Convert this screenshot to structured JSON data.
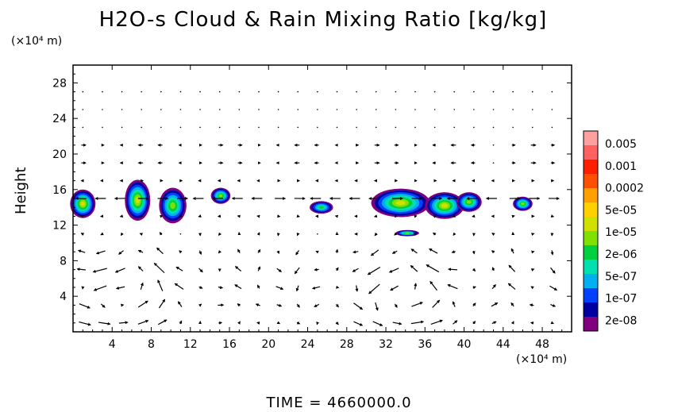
{
  "title": "H2O-s Cloud & Rain Mixing Ratio [kg/kg]",
  "time_label": "TIME = 4660000.0",
  "chart_data": {
    "type": "heatmap",
    "title": "H2O-s Cloud & Rain Mixing Ratio [kg/kg]",
    "xlabel": "",
    "xunit": "(×10⁴ m)",
    "ylabel": "Height",
    "yunit": "(×10⁴ m)",
    "xlim": [
      0,
      51
    ],
    "ylim": [
      0,
      30
    ],
    "xticks": [
      "4",
      "8",
      "12",
      "16",
      "20",
      "24",
      "28",
      "32",
      "36",
      "40",
      "44",
      "48"
    ],
    "yticks": [
      "4",
      "8",
      "12",
      "16",
      "20",
      "24",
      "28"
    ],
    "log_scale_colorbar": true,
    "colorbar": {
      "labels": [
        "0.005",
        "0.001",
        "0.0002",
        "5e-05",
        "1e-05",
        "2e-06",
        "5e-07",
        "1e-07",
        "2e-08"
      ],
      "colors": [
        "#800080",
        "#0000a0",
        "#0040ff",
        "#00b0f0",
        "#00e0b0",
        "#00d040",
        "#80e000",
        "#d0e000",
        "#ffd000",
        "#ffa000",
        "#ff5000",
        "#ff2000",
        "#ff6060",
        "#ffa0a0"
      ]
    },
    "clouds": [
      {
        "x": 1.0,
        "y": 14.4,
        "rx": 1.3,
        "ry": 1.6,
        "peak": "5e-05"
      },
      {
        "x": 6.6,
        "y": 14.8,
        "rx": 1.3,
        "ry": 2.3,
        "peak": "5e-05"
      },
      {
        "x": 10.2,
        "y": 14.2,
        "rx": 1.4,
        "ry": 2.0,
        "peak": "1e-05"
      },
      {
        "x": 15.1,
        "y": 15.3,
        "rx": 1.0,
        "ry": 0.9,
        "peak": "1e-05"
      },
      {
        "x": 25.4,
        "y": 14.0,
        "rx": 1.2,
        "ry": 0.7,
        "peak": "2e-06"
      },
      {
        "x": 33.5,
        "y": 14.5,
        "rx": 3.0,
        "ry": 1.6,
        "peak": "5e-05"
      },
      {
        "x": 38.0,
        "y": 14.2,
        "rx": 2.0,
        "ry": 1.5,
        "peak": "5e-05"
      },
      {
        "x": 40.5,
        "y": 14.6,
        "rx": 1.3,
        "ry": 1.1,
        "peak": "1e-05"
      },
      {
        "x": 46.0,
        "y": 14.4,
        "rx": 1.0,
        "ry": 0.8,
        "peak": "1e-05"
      },
      {
        "x": 34.2,
        "y": 11.1,
        "rx": 1.2,
        "ry": 0.35,
        "peak": "1e-05"
      }
    ],
    "wind_field": "arrows; two overturning circulations centered near x≈4, y≈4 and x≈34, y≈4; strong horizontal flow near y≈15 and y≈20"
  }
}
